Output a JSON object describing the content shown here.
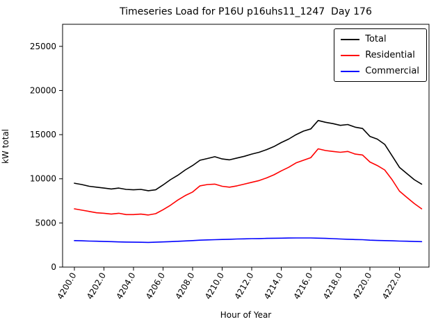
{
  "chart_data": {
    "type": "line",
    "title": "Timeseries Load for P16U p16uhs11_1247  Day 176",
    "xlabel": "Hour of Year",
    "ylabel": "kW total",
    "legend_position": "upper right",
    "grid": false,
    "xlim": [
      4199.2,
      4224.0
    ],
    "ylim": [
      0,
      27500
    ],
    "x_tick_labels": [
      "4200.0",
      "4202.0",
      "4204.0",
      "4206.0",
      "4208.0",
      "4210.0",
      "4212.0",
      "4214.0",
      "4216.0",
      "4218.0",
      "4220.0",
      "4222.0"
    ],
    "y_ticks": [
      0,
      5000,
      10000,
      15000,
      20000,
      25000
    ],
    "x": [
      4200.0,
      4200.5,
      4201.0,
      4201.5,
      4202.0,
      4202.5,
      4203.0,
      4203.5,
      4204.0,
      4204.5,
      4205.0,
      4205.5,
      4206.0,
      4206.5,
      4207.0,
      4207.5,
      4208.0,
      4208.5,
      4209.0,
      4209.5,
      4210.0,
      4210.5,
      4211.0,
      4211.5,
      4212.0,
      4212.5,
      4213.0,
      4213.5,
      4214.0,
      4214.5,
      4215.0,
      4215.5,
      4216.0,
      4216.5,
      4217.0,
      4217.5,
      4218.0,
      4218.5,
      4219.0,
      4219.5,
      4220.0,
      4220.5,
      4221.0,
      4221.5,
      4222.0,
      4222.5,
      4223.0,
      4223.5
    ],
    "series": [
      {
        "name": "Total",
        "color": "#000000",
        "values": [
          9500,
          9350,
          9150,
          9050,
          8950,
          8850,
          8950,
          8800,
          8750,
          8800,
          8650,
          8750,
          9300,
          9900,
          10400,
          11000,
          11500,
          12100,
          12300,
          12500,
          12250,
          12150,
          12350,
          12550,
          12800,
          13000,
          13300,
          13650,
          14100,
          14500,
          15000,
          15400,
          15650,
          16600,
          16400,
          16250,
          16050,
          16150,
          15850,
          15700,
          14800,
          14500,
          13900,
          12600,
          11300,
          10600,
          9900,
          9400
        ]
      },
      {
        "name": "Residential",
        "color": "#ff0000",
        "values": [
          6600,
          6450,
          6300,
          6150,
          6100,
          6000,
          6100,
          5950,
          5950,
          6000,
          5900,
          6050,
          6500,
          7000,
          7600,
          8100,
          8500,
          9200,
          9350,
          9400,
          9150,
          9050,
          9200,
          9400,
          9600,
          9800,
          10100,
          10450,
          10900,
          11300,
          11800,
          12100,
          12400,
          13400,
          13200,
          13100,
          13000,
          13100,
          12800,
          12700,
          11900,
          11500,
          11000,
          9900,
          8600,
          7900,
          7200,
          6600
        ]
      },
      {
        "name": "Commercial",
        "color": "#0000ff",
        "values": [
          3000,
          2980,
          2950,
          2930,
          2900,
          2880,
          2850,
          2840,
          2820,
          2810,
          2800,
          2820,
          2850,
          2880,
          2920,
          2960,
          3000,
          3050,
          3080,
          3100,
          3130,
          3150,
          3180,
          3200,
          3220,
          3230,
          3250,
          3270,
          3280,
          3290,
          3300,
          3300,
          3300,
          3280,
          3250,
          3220,
          3180,
          3150,
          3120,
          3100,
          3050,
          3020,
          3000,
          2980,
          2950,
          2930,
          2900,
          2880
        ]
      }
    ]
  }
}
